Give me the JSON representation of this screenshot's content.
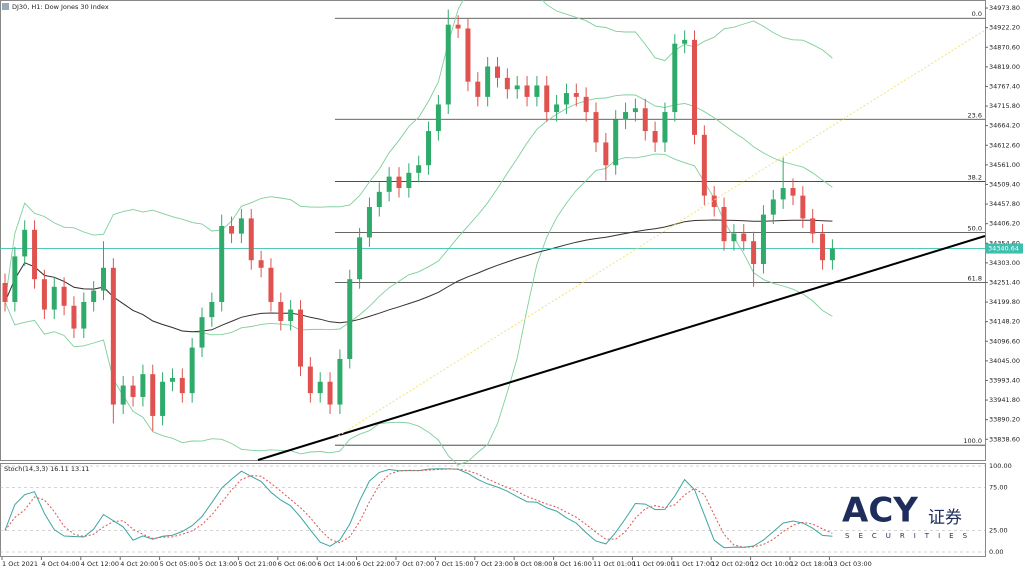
{
  "chart_data": {
    "type": "candlestick",
    "title": "DJ30, H1: Dow Jones 30 Index",
    "up_color": "#2eaa6a",
    "down_color": "#e0524f",
    "band_color": "#7fcf9a",
    "ma_color": "#3a3030",
    "price_line_color": "#3cbfae",
    "ylim": [
      33784,
      34995
    ],
    "yticks": [
      {
        "value": 34973.8,
        "label": "34973.80"
      },
      {
        "value": 34922.2,
        "label": "34922.20"
      },
      {
        "value": 34870.6,
        "label": "34870.60"
      },
      {
        "value": 34819,
        "label": "34819.00"
      },
      {
        "value": 34767.4,
        "label": "34767.40"
      },
      {
        "value": 34715.8,
        "label": "34715.80"
      },
      {
        "value": 34664.2,
        "label": "34664.20"
      },
      {
        "value": 34612.6,
        "label": "34612.60"
      },
      {
        "value": 34561,
        "label": "34561.00"
      },
      {
        "value": 34509.4,
        "label": "34509.40"
      },
      {
        "value": 34457.8,
        "label": "34457.80"
      },
      {
        "value": 34406.2,
        "label": "34406.20"
      },
      {
        "value": 34354.6,
        "label": "34354.60"
      },
      {
        "value": 34303,
        "label": "34303.00"
      },
      {
        "value": 34251.4,
        "label": "34251.40"
      },
      {
        "value": 34199.8,
        "label": "34199.80"
      },
      {
        "value": 34148.2,
        "label": "34148.20"
      },
      {
        "value": 34096.6,
        "label": "34096.60"
      },
      {
        "value": 34045,
        "label": "34045.00"
      },
      {
        "value": 33993.4,
        "label": "33993.40"
      },
      {
        "value": 33941.8,
        "label": "33941.80"
      },
      {
        "value": 33890.2,
        "label": "33890.20"
      },
      {
        "value": 33838.6,
        "label": "33838.60"
      }
    ],
    "fib_levels": [
      {
        "value": 34947,
        "label": "0.0"
      },
      {
        "value": 34681,
        "label": "23.6"
      },
      {
        "value": 34517,
        "label": "38.2"
      },
      {
        "value": 34383,
        "label": "50.0"
      },
      {
        "value": 34251,
        "label": "61.8"
      },
      {
        "value": 33823,
        "label": "100.0"
      }
    ],
    "time_labels": [
      "1 Oct 2021",
      "4 Oct 04:00",
      "4 Oct 12:00",
      "4 Oct 20:00",
      "5 Oct 05:00",
      "5 Oct 13:00",
      "5 Oct 21:00",
      "6 Oct 06:00",
      "6 Oct 14:00",
      "6 Oct 22:00",
      "7 Oct 07:00",
      "7 Oct 15:00",
      "7 Oct 23:00",
      "8 Oct 08:00",
      "8 Oct 16:00",
      "11 Oct 01:00",
      "11 Oct 09:00",
      "11 Oct 17:00",
      "12 Oct 02:00",
      "12 Oct 10:00",
      "12 Oct 18:00",
      "13 Oct 03:00"
    ],
    "open": [
      34250,
      34200,
      34320,
      34390,
      34260,
      34180,
      34240,
      34190,
      34130,
      34200,
      34230,
      34290,
      33930,
      33980,
      33950,
      34010,
      33900,
      33990,
      34000,
      33960,
      34080,
      34160,
      34200,
      34400,
      34380,
      34420,
      34310,
      34290,
      34200,
      34150,
      34180,
      34030,
      33960,
      33990,
      33930,
      34050,
      34260,
      34370,
      34450,
      34490,
      34530,
      34500,
      34540,
      34560,
      34650,
      34720,
      34930,
      34920,
      34780,
      34740,
      34820,
      34790,
      34760,
      34770,
      34740,
      34770,
      34700,
      34720,
      34750,
      34740,
      34700,
      34620,
      34560,
      34680,
      34700,
      34710,
      34650,
      34620,
      34700,
      34880,
      34890,
      34640,
      34480,
      34450,
      34360,
      34380,
      34360,
      34300,
      34430,
      34470,
      34500,
      34480,
      34420,
      34380,
      34310
    ],
    "high": [
      34275,
      34345,
      34415,
      34415,
      34285,
      34265,
      34265,
      34215,
      34225,
      34255,
      34360,
      34315,
      34005,
      34005,
      34035,
      34035,
      34015,
      34025,
      34025,
      34105,
      34185,
      34225,
      34430,
      34425,
      34445,
      34445,
      34335,
      34315,
      34225,
      34205,
      34205,
      34055,
      34015,
      34015,
      34075,
      34285,
      34395,
      34475,
      34515,
      34555,
      34555,
      34565,
      34585,
      34675,
      34745,
      34970,
      34955,
      34945,
      34805,
      34845,
      34845,
      34815,
      34795,
      34795,
      34795,
      34795,
      34745,
      34775,
      34775,
      34765,
      34725,
      34645,
      34705,
      34725,
      34735,
      34735,
      34675,
      34725,
      34905,
      34915,
      34915,
      34665,
      34505,
      34475,
      34405,
      34405,
      34385,
      34455,
      34495,
      34580,
      34525,
      34505,
      34445,
      34405,
      34365
    ],
    "low": [
      34175,
      34175,
      34295,
      34235,
      34155,
      34155,
      34165,
      34105,
      34105,
      34175,
      34205,
      33880,
      33905,
      33925,
      33925,
      33860,
      33875,
      33965,
      33935,
      33935,
      34055,
      34135,
      34175,
      34355,
      34355,
      34285,
      34265,
      34175,
      34125,
      34125,
      34005,
      33935,
      33935,
      33905,
      33905,
      34025,
      34235,
      34345,
      34425,
      34465,
      34475,
      34475,
      34515,
      34535,
      34625,
      34695,
      34895,
      34755,
      34715,
      34715,
      34765,
      34735,
      34735,
      34715,
      34715,
      34675,
      34675,
      34695,
      34715,
      34675,
      34595,
      34520,
      34535,
      34655,
      34675,
      34625,
      34595,
      34595,
      34675,
      34855,
      34615,
      34455,
      34425,
      34335,
      34335,
      34335,
      34240,
      34275,
      34405,
      34445,
      34455,
      34395,
      34355,
      34285,
      34285
    ],
    "close": [
      34200,
      34320,
      34390,
      34260,
      34180,
      34240,
      34190,
      34130,
      34200,
      34230,
      34290,
      33930,
      33980,
      33950,
      34010,
      33900,
      33990,
      34000,
      33960,
      34080,
      34160,
      34200,
      34400,
      34380,
      34420,
      34310,
      34290,
      34200,
      34150,
      34180,
      34030,
      33960,
      33990,
      33930,
      34050,
      34260,
      34370,
      34450,
      34490,
      34530,
      34500,
      34540,
      34560,
      34650,
      34720,
      34930,
      34920,
      34780,
      34740,
      34820,
      34790,
      34760,
      34770,
      34740,
      34770,
      34700,
      34720,
      34750,
      34740,
      34700,
      34620,
      34560,
      34680,
      34700,
      34710,
      34650,
      34620,
      34700,
      34880,
      34890,
      34640,
      34480,
      34450,
      34360,
      34380,
      34360,
      34300,
      34430,
      34470,
      34500,
      34480,
      34420,
      34380,
      34310,
      34340.64
    ],
    "stoch_label": "Stoch(14,3,3) 16.11 13.11",
    "stoch_ylim": [
      0,
      100
    ],
    "stoch_yticks": [
      {
        "value": 100,
        "label": "100.00"
      },
      {
        "value": 75,
        "label": "75.00"
      },
      {
        "value": 25,
        "label": "25.00"
      },
      {
        "value": 0,
        "label": "0.00"
      }
    ],
    "watermark": {
      "brand": "ACY",
      "cn": "证券",
      "sub": "SECURITIES"
    }
  }
}
